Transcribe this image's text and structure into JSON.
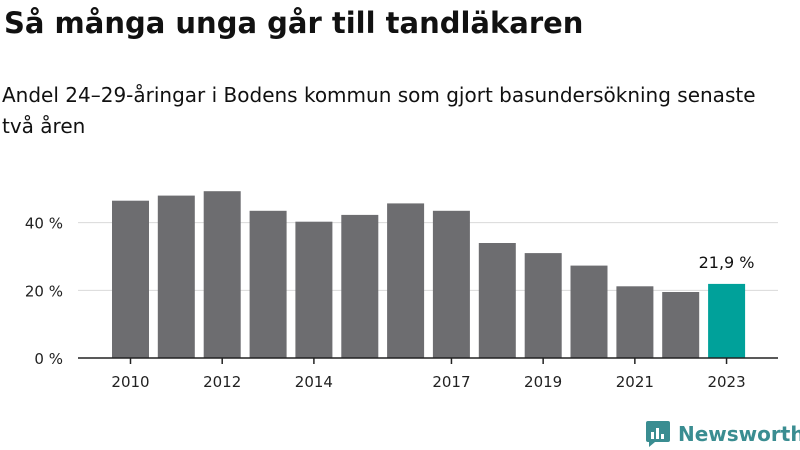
{
  "title": "Så många unga går till tandläkaren",
  "subtitle": "Andel 24–29-åringar i Bodens kommun som gjort basundersökning senaste två åren",
  "brand": {
    "name": "Newsworthy"
  },
  "colors": {
    "bar": "#6d6d70",
    "highlight": "#00a19a",
    "axis": "#222222",
    "grid": "#d9d9d9",
    "brand": "#3a8d91"
  },
  "chart_data": {
    "type": "bar",
    "categories": [
      "2010",
      "2011",
      "2012",
      "2013",
      "2014",
      "2015",
      "2016",
      "2017",
      "2018",
      "2019",
      "2020",
      "2021",
      "2022",
      "2023"
    ],
    "values": [
      46.5,
      48,
      49.3,
      43.5,
      40.3,
      42.3,
      45.7,
      43.5,
      34,
      31,
      27.3,
      21.2,
      19.5,
      21.9
    ],
    "highlight_index": 13,
    "x_tick_labels": [
      "2010",
      "2012",
      "2014",
      "2017",
      "2019",
      "2021",
      "2023"
    ],
    "y_ticks": [
      0,
      20,
      40
    ],
    "y_tick_labels": [
      "0 %",
      "20 %",
      "40 %"
    ],
    "ylim": [
      0,
      60
    ],
    "data_labels": [
      {
        "index": 13,
        "text": "21,9 %"
      }
    ],
    "grid": true
  }
}
